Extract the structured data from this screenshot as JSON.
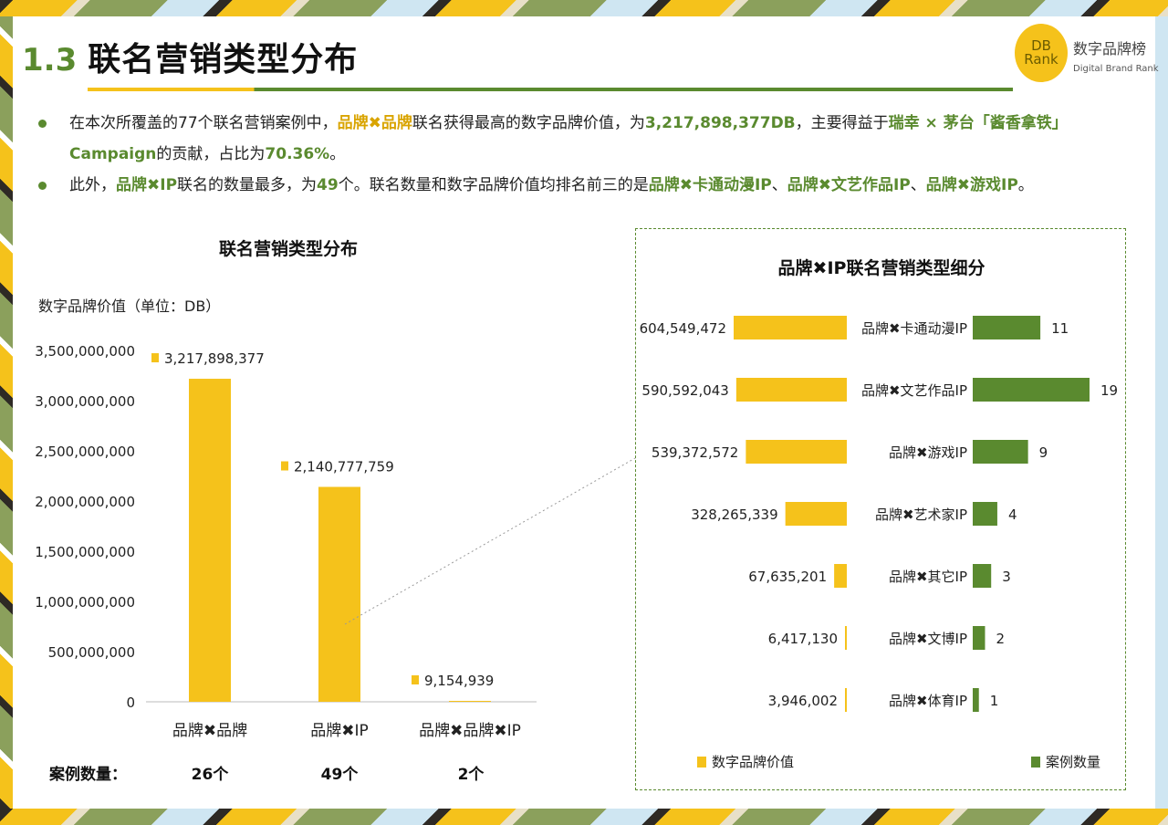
{
  "header": {
    "section_number": "1.3",
    "title": "联名营销类型分布",
    "logo_mark": [
      "DB",
      "Rank"
    ],
    "logo_cn": "数字品牌榜",
    "logo_en": "Digital Brand Rank"
  },
  "bullets": [
    {
      "parts": [
        {
          "t": "在本次所覆盖的77个联名营销案例中，",
          "s": ""
        },
        {
          "t": "品牌✖品牌",
          "s": "yellow"
        },
        {
          "t": "联名获得最高的数字品牌价值，为",
          "s": ""
        },
        {
          "t": "3,217,898,377",
          "s": "green"
        },
        {
          "t": "DB",
          "s": "green"
        },
        {
          "t": "，主要得益于",
          "s": ""
        },
        {
          "t": "瑞幸 × 茅台「酱香拿铁」Campaign",
          "s": "green"
        },
        {
          "t": "的贡献，占比为",
          "s": ""
        },
        {
          "t": "70.36%",
          "s": "green"
        },
        {
          "t": "。",
          "s": ""
        }
      ]
    },
    {
      "parts": [
        {
          "t": "此外，",
          "s": ""
        },
        {
          "t": "品牌✖IP",
          "s": "green"
        },
        {
          "t": "联名的数量最多，为",
          "s": ""
        },
        {
          "t": "49",
          "s": "green"
        },
        {
          "t": "个。联名数量和数字品牌价值均排名前三的是",
          "s": ""
        },
        {
          "t": "品牌✖卡通动漫IP",
          "s": "green"
        },
        {
          "t": "、",
          "s": ""
        },
        {
          "t": "品牌✖文艺作品IP",
          "s": "green"
        },
        {
          "t": "、",
          "s": ""
        },
        {
          "t": "品牌✖游戏IP",
          "s": "green"
        },
        {
          "t": "。",
          "s": ""
        }
      ]
    }
  ],
  "left_chart": {
    "title": "联名营销类型分布",
    "ylabel": "数字品牌价值（单位：DB）",
    "cases_label": "案例数量：",
    "case_counts": [
      "26个",
      "49个",
      "2个"
    ]
  },
  "right_chart": {
    "title": "品牌✖IP联名营销类型细分",
    "legend_value": "数字品牌价值",
    "legend_count": "案例数量"
  },
  "colors": {
    "yellow": "#f5c21b",
    "green": "#5a8a2f"
  },
  "chart_data": [
    {
      "type": "bar",
      "title": "联名营销类型分布",
      "ylabel": "数字品牌价值（单位：DB）",
      "categories": [
        "品牌✖品牌",
        "品牌✖IP",
        "品牌✖品牌✖IP"
      ],
      "values": [
        3217898377,
        2140777759,
        9154939
      ],
      "value_labels": [
        "3,217,898,377",
        "2,140,777,759",
        "9,154,939"
      ],
      "ylim": [
        0,
        3500000000
      ],
      "yticks": [
        0,
        500000000,
        1000000000,
        1500000000,
        2000000000,
        2500000000,
        3000000000,
        3500000000
      ],
      "ytick_labels": [
        "0",
        "500,000,000",
        "1,000,000,000",
        "1,500,000,000",
        "2,000,000,000",
        "2,500,000,000",
        "3,000,000,000",
        "3,500,000,000"
      ],
      "grid": false
    },
    {
      "type": "bar",
      "title": "品牌✖IP联名营销类型细分",
      "categories": [
        "品牌✖卡通动漫IP",
        "品牌✖文艺作品IP",
        "品牌✖游戏IP",
        "品牌✖艺术家IP",
        "品牌✖其它IP",
        "品牌✖文博IP",
        "品牌✖体育IP"
      ],
      "series": [
        {
          "name": "数字品牌价值",
          "values": [
            604549472,
            590592043,
            539372572,
            328265339,
            67635201,
            6417130,
            3946002
          ],
          "labels": [
            "604,549,472",
            "590,592,043",
            "539,372,572",
            "328,265,339",
            "67,635,201",
            "6,417,130",
            "3,946,002"
          ]
        },
        {
          "name": "案例数量",
          "values": [
            11,
            19,
            9,
            4,
            3,
            2,
            1
          ]
        }
      ],
      "legend": "bottom"
    }
  ]
}
